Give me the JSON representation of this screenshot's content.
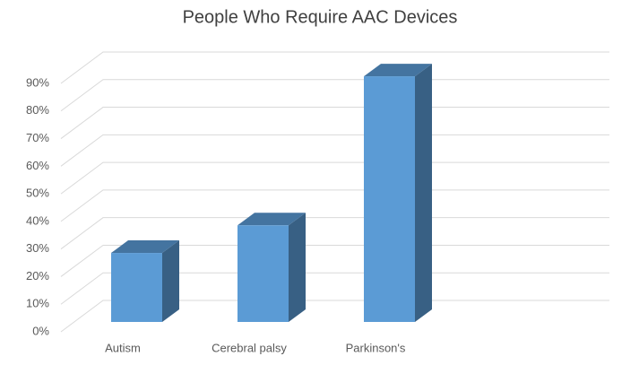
{
  "chart_data": {
    "type": "bar3d",
    "title": "People Who Require AAC Devices",
    "categories": [
      "Autism",
      "Cerebral palsy",
      "Parkinson's"
    ],
    "values": [
      25,
      35,
      89
    ],
    "color": "#5b9bd5",
    "ylim": [
      0,
      90
    ],
    "yticks": [
      {
        "value": 0,
        "label": "0%"
      },
      {
        "value": 10,
        "label": "10%"
      },
      {
        "value": 20,
        "label": "20%"
      },
      {
        "value": 30,
        "label": "30%"
      },
      {
        "value": 40,
        "label": "40%"
      },
      {
        "value": 50,
        "label": "50%"
      },
      {
        "value": 60,
        "label": "60%"
      },
      {
        "value": 70,
        "label": "70%"
      },
      {
        "value": 80,
        "label": "80%"
      },
      {
        "value": 90,
        "label": "90%"
      }
    ],
    "grid": true
  }
}
